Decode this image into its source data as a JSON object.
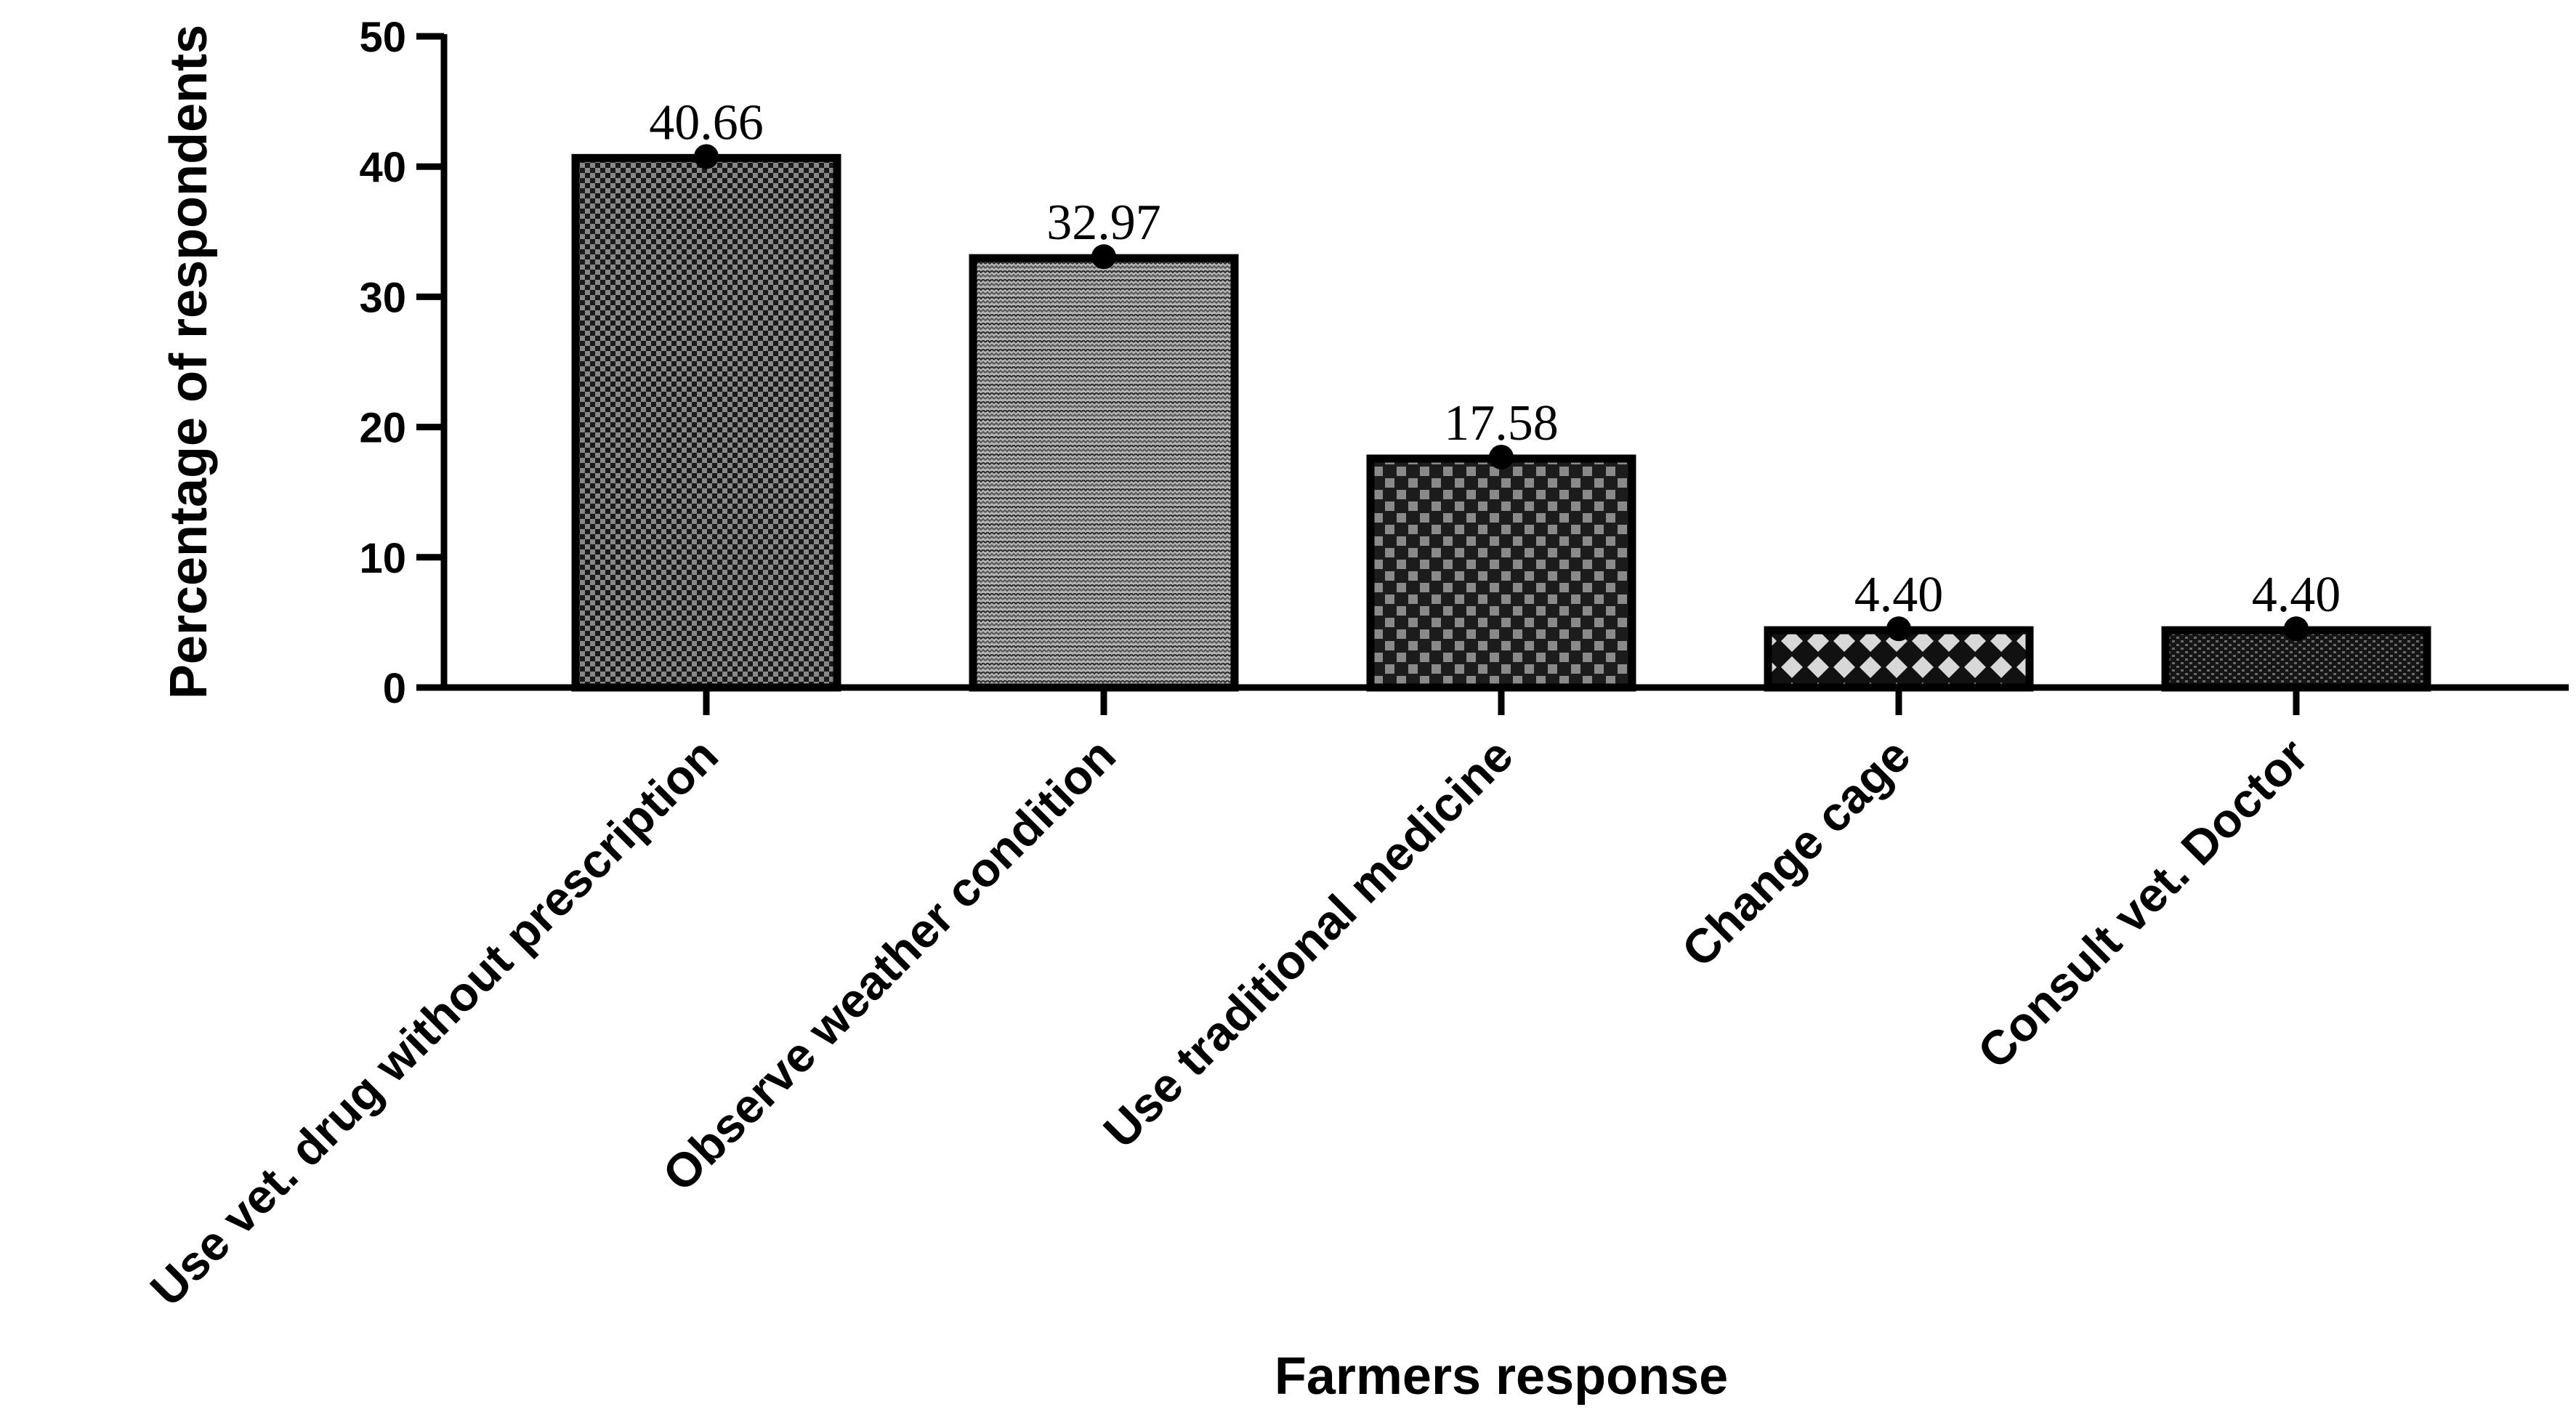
{
  "chart_data": {
    "type": "bar",
    "categories": [
      "Use vet. drug without prescription",
      "Observe weather condition",
      "Use traditional medicine",
      "Change cage",
      "Consult vet. Doctor"
    ],
    "values": [
      40.66,
      32.97,
      17.58,
      4.4,
      4.4
    ],
    "data_labels": [
      "40.66",
      "32.97",
      "17.58",
      "4.40",
      "4.40"
    ],
    "title": "",
    "xlabel": "Farmers response",
    "ylabel": "Percentage of respondents",
    "ylim": [
      0,
      50
    ],
    "yticks": [
      "0",
      "10",
      "20",
      "30",
      "40",
      "50"
    ],
    "grid": false,
    "legend": "none",
    "colors": {
      "axis": "#000000",
      "bar_stroke": "#000000",
      "patterns": [
        "#888888",
        "#b4b4b4",
        "#8a8a8a",
        "#d8d8d8",
        "#6a6a6a"
      ]
    }
  }
}
